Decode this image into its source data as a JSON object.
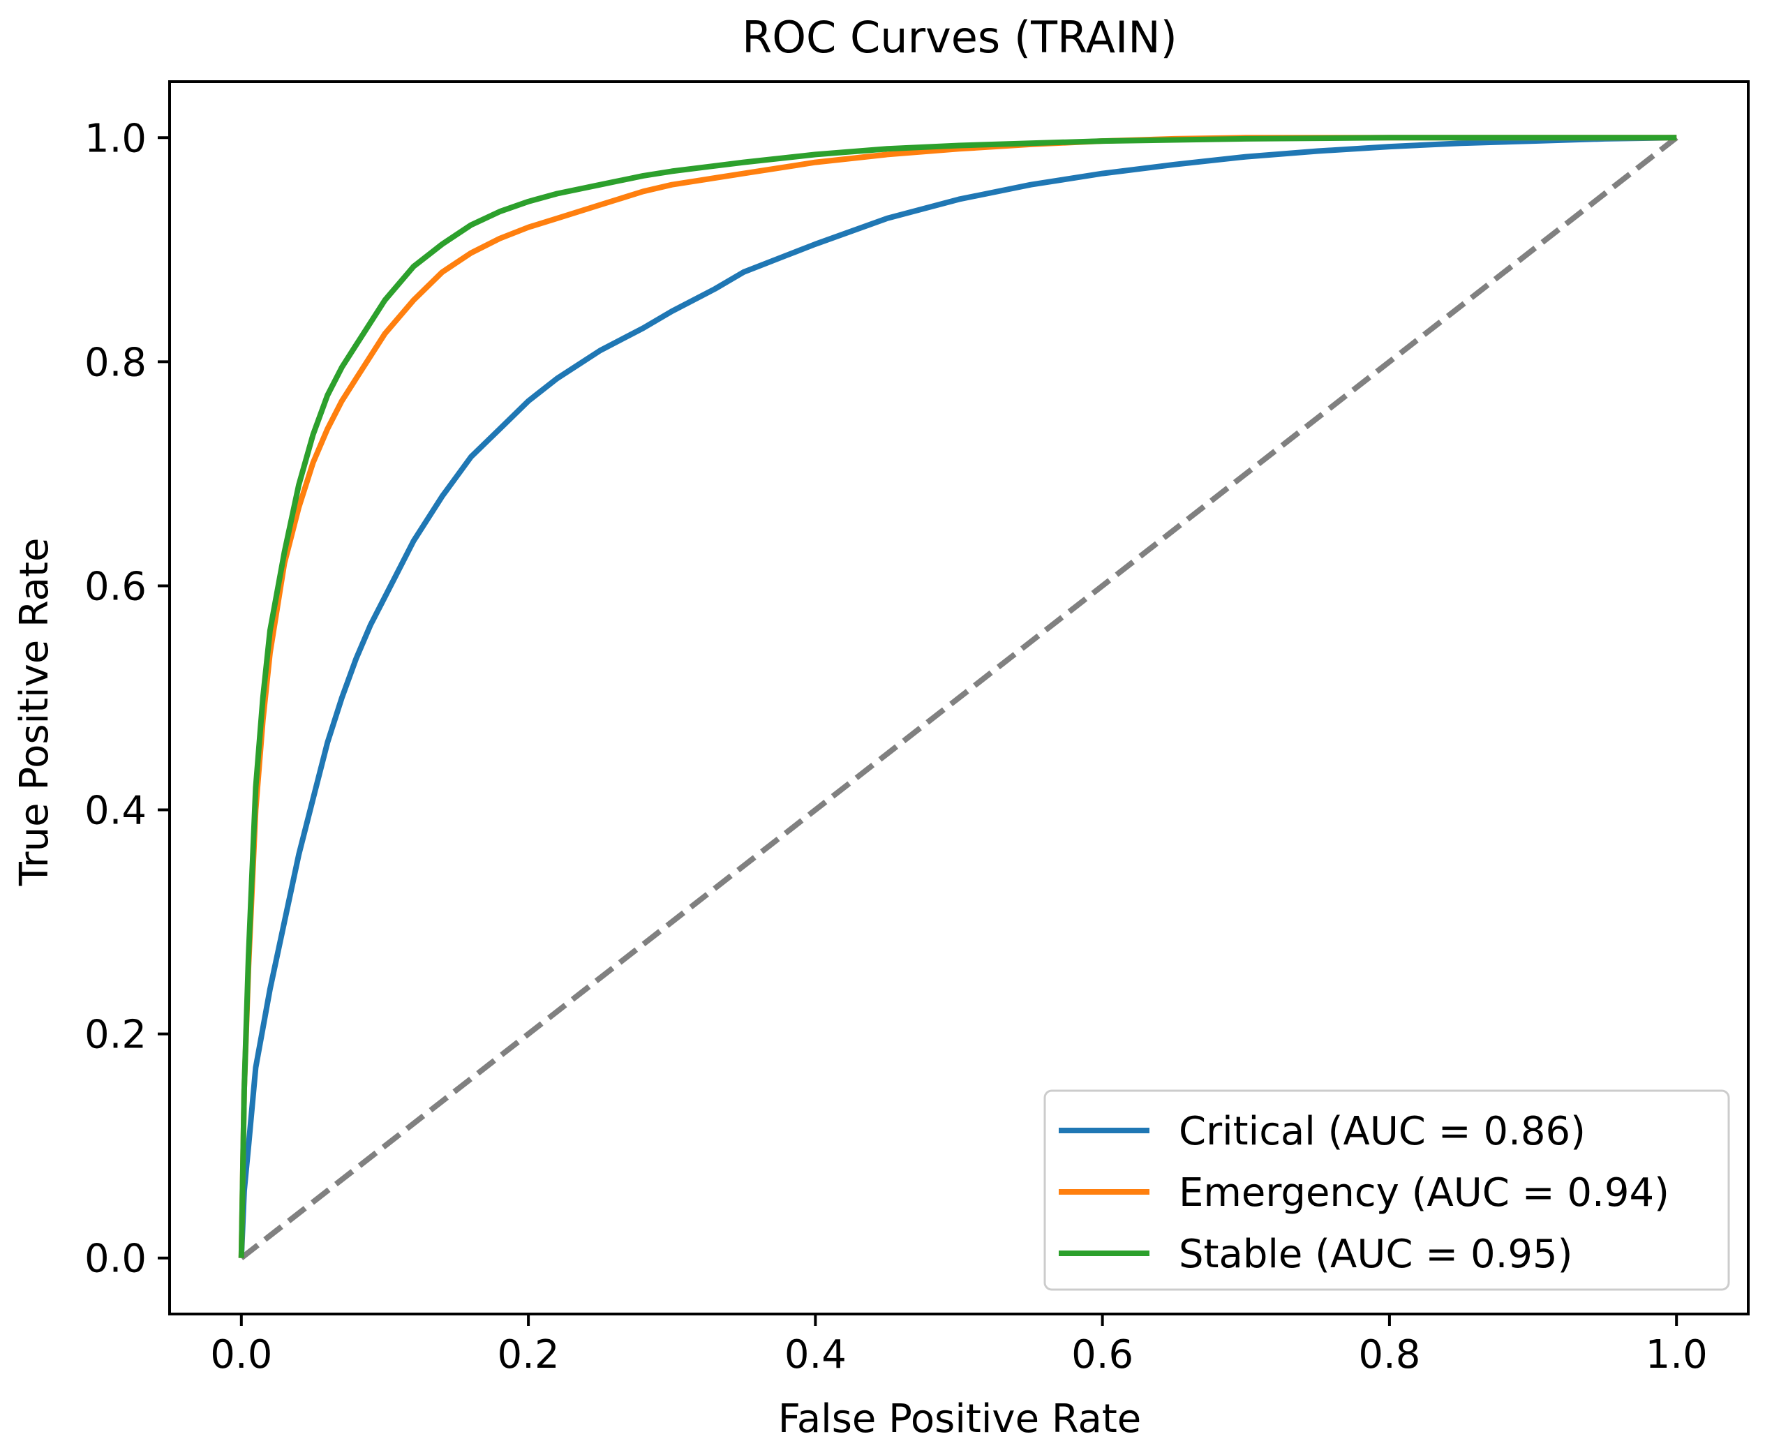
{
  "chart_data": {
    "type": "line",
    "title": "ROC Curves (TRAIN)",
    "xlabel": "False Positive Rate",
    "ylabel": "True Positive Rate",
    "xlim": [
      -0.05,
      1.05
    ],
    "ylim": [
      -0.05,
      1.05
    ],
    "xticks": [
      "0.0",
      "0.2",
      "0.4",
      "0.6",
      "0.8",
      "1.0"
    ],
    "yticks": [
      "0.0",
      "0.2",
      "0.4",
      "0.6",
      "0.8",
      "1.0"
    ],
    "grid": false,
    "legend_position": "lower-right",
    "series": [
      {
        "name": "Critical (AUC = 0.86)",
        "color": "#1f77b4",
        "x": [
          0,
          0.002,
          0.005,
          0.01,
          0.02,
          0.03,
          0.04,
          0.05,
          0.06,
          0.07,
          0.08,
          0.09,
          0.1,
          0.12,
          0.14,
          0.16,
          0.18,
          0.2,
          0.22,
          0.25,
          0.28,
          0.3,
          0.33,
          0.35,
          0.38,
          0.4,
          0.45,
          0.5,
          0.55,
          0.6,
          0.65,
          0.7,
          0.75,
          0.8,
          0.85,
          0.9,
          0.95,
          1.0
        ],
        "y": [
          0,
          0.06,
          0.1,
          0.17,
          0.24,
          0.3,
          0.36,
          0.41,
          0.46,
          0.5,
          0.535,
          0.565,
          0.59,
          0.64,
          0.68,
          0.715,
          0.74,
          0.765,
          0.785,
          0.81,
          0.83,
          0.845,
          0.865,
          0.88,
          0.895,
          0.905,
          0.928,
          0.945,
          0.958,
          0.968,
          0.976,
          0.983,
          0.988,
          0.992,
          0.995,
          0.997,
          0.999,
          1.0
        ]
      },
      {
        "name": "Emergency (AUC = 0.94)",
        "color": "#ff7f0e",
        "x": [
          0,
          0.002,
          0.005,
          0.01,
          0.015,
          0.02,
          0.03,
          0.04,
          0.05,
          0.06,
          0.07,
          0.08,
          0.1,
          0.12,
          0.14,
          0.16,
          0.18,
          0.2,
          0.22,
          0.25,
          0.28,
          0.3,
          0.35,
          0.4,
          0.45,
          0.5,
          0.55,
          0.6,
          0.65,
          0.7,
          0.8,
          0.9,
          1.0
        ],
        "y": [
          0,
          0.15,
          0.26,
          0.4,
          0.48,
          0.54,
          0.62,
          0.67,
          0.71,
          0.74,
          0.765,
          0.785,
          0.825,
          0.855,
          0.88,
          0.897,
          0.91,
          0.92,
          0.928,
          0.94,
          0.952,
          0.958,
          0.968,
          0.978,
          0.985,
          0.99,
          0.994,
          0.997,
          0.999,
          1.0,
          1.0,
          1.0,
          1.0
        ]
      },
      {
        "name": "Stable (AUC = 0.95)",
        "color": "#2ca02c",
        "x": [
          0,
          0.002,
          0.005,
          0.01,
          0.015,
          0.02,
          0.03,
          0.04,
          0.05,
          0.06,
          0.07,
          0.08,
          0.1,
          0.12,
          0.14,
          0.16,
          0.18,
          0.2,
          0.22,
          0.25,
          0.28,
          0.3,
          0.35,
          0.4,
          0.45,
          0.5,
          0.55,
          0.6,
          0.65,
          0.7,
          0.8,
          0.9,
          1.0
        ],
        "y": [
          0,
          0.15,
          0.27,
          0.42,
          0.5,
          0.56,
          0.63,
          0.69,
          0.735,
          0.77,
          0.795,
          0.815,
          0.855,
          0.885,
          0.905,
          0.922,
          0.934,
          0.943,
          0.95,
          0.958,
          0.966,
          0.97,
          0.978,
          0.985,
          0.99,
          0.993,
          0.995,
          0.997,
          0.998,
          0.999,
          1.0,
          1.0,
          1.0
        ]
      }
    ],
    "reference_line": {
      "name": "chance",
      "color": "#808080",
      "x": [
        0,
        1
      ],
      "y": [
        0,
        1
      ]
    }
  }
}
